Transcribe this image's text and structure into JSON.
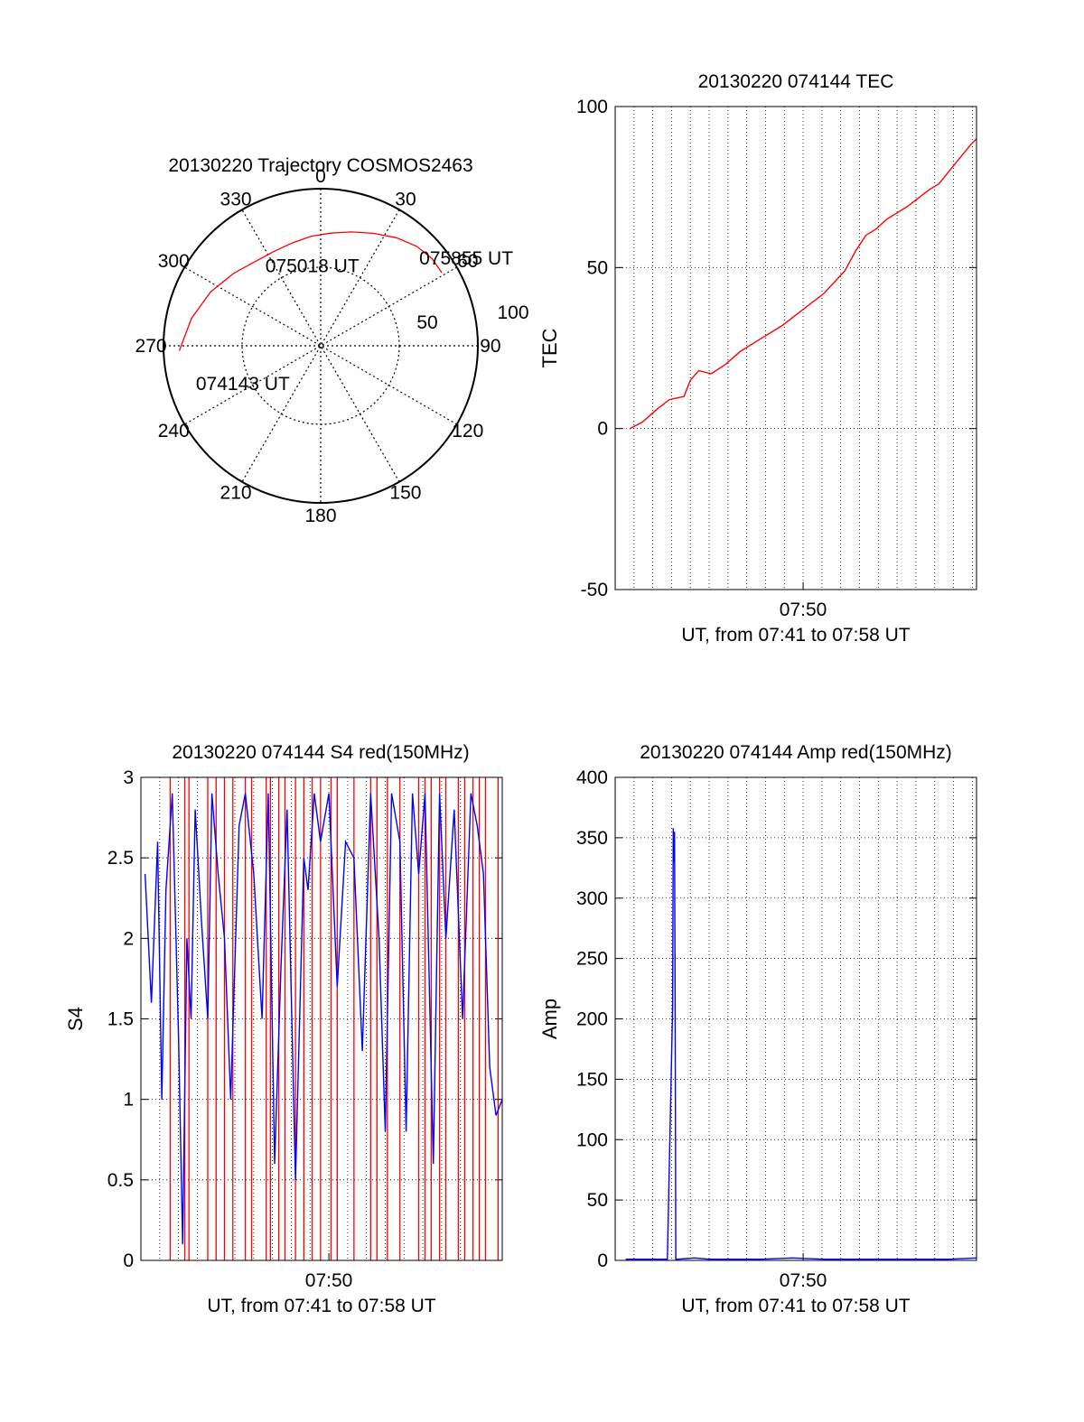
{
  "chart_data": [
    {
      "id": "polar",
      "type": "scatter",
      "title": "20130220 Trajectory COSMOS2463",
      "azimuth_labels": [
        "0",
        "30",
        "60",
        "90",
        "120",
        "150",
        "180",
        "210",
        "240",
        "270",
        "300",
        "330"
      ],
      "radial_labels": [
        "50",
        "100"
      ],
      "rlim": [
        0,
        100
      ],
      "grid": true,
      "track_color": "#ff0000",
      "track": [
        {
          "az": 268,
          "r": 90
        },
        {
          "az": 282,
          "r": 84
        },
        {
          "az": 296,
          "r": 78
        },
        {
          "az": 310,
          "r": 72
        },
        {
          "az": 322,
          "r": 68
        },
        {
          "az": 334,
          "r": 67
        },
        {
          "az": 345,
          "r": 68
        },
        {
          "az": 355,
          "r": 70
        },
        {
          "az": 5,
          "r": 72
        },
        {
          "az": 15,
          "r": 75
        },
        {
          "az": 25,
          "r": 79
        },
        {
          "az": 35,
          "r": 84
        },
        {
          "az": 44,
          "r": 88
        },
        {
          "az": 52,
          "r": 90
        },
        {
          "az": 59,
          "r": 90
        }
      ],
      "annotations": [
        {
          "text": "074143 UT",
          "az": 253,
          "r": 83
        },
        {
          "text": "075018 UT",
          "az": 354,
          "r": 51
        },
        {
          "text": "075855 UT",
          "az": 59,
          "r": 108
        }
      ]
    },
    {
      "id": "tec",
      "type": "line",
      "title": "20130220 074144 TEC",
      "ylabel": "TEC",
      "xlabel": "UT, from 07:41 to 07:58 UT",
      "xtick_labels": [
        "07:50"
      ],
      "xtick_values": [
        9.0
      ],
      "xlim": [
        0,
        17.3
      ],
      "ylim": [
        -50,
        100
      ],
      "yticks": [
        -50,
        0,
        50,
        100
      ],
      "minor_x_grid_step": 0.9,
      "line_color": "#ff0000",
      "x": [
        0.7,
        1.3,
        2.0,
        2.6,
        3.3,
        3.6,
        4.0,
        4.6,
        5.3,
        6.0,
        7.0,
        8.0,
        9.0,
        10.0,
        11.0,
        11.5,
        12.0,
        12.5,
        13.0,
        14.0,
        15.0,
        15.5,
        16.0,
        16.5,
        17.0,
        17.3
      ],
      "values": [
        0,
        2,
        6,
        9,
        10,
        15,
        18,
        17,
        20,
        24,
        28,
        32,
        37,
        42,
        49,
        55,
        60,
        62,
        65,
        69,
        74,
        76,
        80,
        84,
        88,
        90
      ]
    },
    {
      "id": "s4",
      "type": "line",
      "title": "20130220 074144 S4 red(150MHz)",
      "ylabel": "S4",
      "xlabel": "UT, from 07:41 to 07:58 UT",
      "xtick_labels": [
        "07:50"
      ],
      "xtick_values": [
        9.0
      ],
      "xlim": [
        0,
        17.3
      ],
      "ylim": [
        0,
        3
      ],
      "yticks": [
        0,
        0.5,
        1,
        1.5,
        2,
        2.5,
        3
      ],
      "ytick_labels": [
        "0",
        "0.5",
        "1",
        "1.5",
        "2",
        "2.5",
        "3"
      ],
      "minor_x_grid_step": 0.9,
      "series": [
        {
          "color": "#ff0000",
          "x": [
            1.4,
            2.1,
            2.3,
            3.2,
            3.6,
            4.0,
            4.4,
            5.0,
            5.3,
            6.0,
            6.2,
            6.6,
            6.9,
            7.4,
            7.8,
            8.2,
            8.6,
            9.1,
            9.4,
            10.2,
            11.0,
            11.3,
            11.8,
            12.4,
            13.3,
            13.6,
            13.9,
            14.3,
            14.6,
            15.2,
            15.5,
            15.9,
            16.2,
            16.5,
            17.1
          ],
          "values": [
            0,
            0,
            0,
            0,
            0,
            0,
            0,
            0,
            0,
            0,
            0,
            0,
            0,
            0,
            0,
            0,
            0,
            0,
            0,
            0,
            0,
            0,
            0,
            0,
            0,
            0,
            0,
            0,
            0,
            0,
            0,
            0,
            0,
            0,
            0
          ]
        },
        {
          "color": "#0000ff",
          "x": [
            0.2,
            0.5,
            0.8,
            1.0,
            1.2,
            1.5,
            1.8,
            2.0,
            2.2,
            2.4,
            2.6,
            2.9,
            3.2,
            3.4,
            3.7,
            4.0,
            4.3,
            4.7,
            5.0,
            5.4,
            5.8,
            6.1,
            6.4,
            6.7,
            7.0,
            7.4,
            7.8,
            8.0,
            8.3,
            8.6,
            9.0,
            9.4,
            9.8,
            10.2,
            10.6,
            11.0,
            11.4,
            11.7,
            12.0,
            12.4,
            12.7,
            13.0,
            13.3,
            13.6,
            14.0,
            14.3,
            14.6,
            15.0,
            15.4,
            15.8,
            16.1,
            16.4,
            16.7,
            17.0,
            17.3
          ],
          "values": [
            2.4,
            1.6,
            2.6,
            1.0,
            2.3,
            2.9,
            1.4,
            0.1,
            2.0,
            1.5,
            2.8,
            2.1,
            1.5,
            2.9,
            2.4,
            2.0,
            1.0,
            2.7,
            2.9,
            2.4,
            1.5,
            2.9,
            0.6,
            1.8,
            2.8,
            0.5,
            2.5,
            2.3,
            2.9,
            2.6,
            2.9,
            1.7,
            2.6,
            2.5,
            1.3,
            2.9,
            2.0,
            0.8,
            2.9,
            2.6,
            0.8,
            2.9,
            2.4,
            2.9,
            0.6,
            2.9,
            2.0,
            2.8,
            1.5,
            2.9,
            2.7,
            2.4,
            1.2,
            0.9,
            1.0
          ]
        }
      ]
    },
    {
      "id": "amp",
      "type": "line",
      "title": "20130220 074144 Amp red(150MHz)",
      "ylabel": "Amp",
      "xlabel": "UT, from 07:41 to 07:58 UT",
      "xtick_labels": [
        "07:50"
      ],
      "xtick_values": [
        9.0
      ],
      "xlim": [
        0,
        17.3
      ],
      "ylim": [
        0,
        400
      ],
      "yticks": [
        0,
        50,
        100,
        150,
        200,
        250,
        300,
        350,
        400
      ],
      "minor_x_grid_step": 0.9,
      "line_color": "#0000ff",
      "x": [
        0.5,
        1.5,
        2.5,
        2.75,
        2.78,
        2.81,
        2.84,
        2.87,
        2.9,
        3.0,
        3.8,
        4.5,
        5.5,
        7.0,
        8.5,
        10.0,
        11.5,
        13.0,
        14.5,
        16.0,
        17.3
      ],
      "values": [
        1,
        1,
        1,
        210,
        358,
        330,
        355,
        215,
        1,
        1,
        2,
        1,
        1,
        1,
        2,
        1,
        1,
        1,
        1,
        1,
        2
      ]
    }
  ]
}
